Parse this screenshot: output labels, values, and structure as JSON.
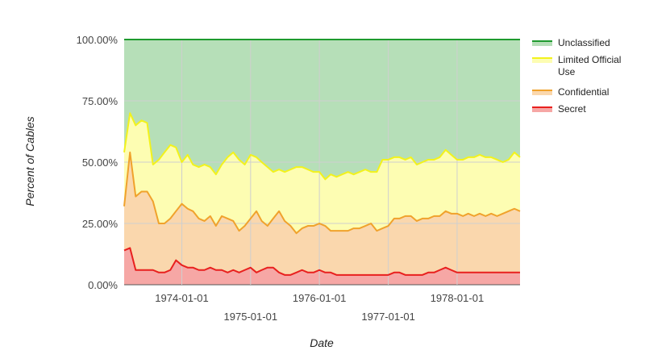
{
  "chart_data": {
    "type": "area",
    "stacking": "percent",
    "xlabel": "Date",
    "ylabel": "Percent of Cables",
    "ylim": [
      0,
      100
    ],
    "xlim": [
      "1973-03-01",
      "1978-12-01"
    ],
    "y_ticks": [
      "0.00%",
      "25.00%",
      "50.00%",
      "75.00%",
      "100.00%"
    ],
    "x_ticks": [
      {
        "date": "1974-01-01",
        "label": "1974-01-01",
        "row": 1
      },
      {
        "date": "1975-01-01",
        "label": "1975-01-01",
        "row": 2
      },
      {
        "date": "1976-01-01",
        "label": "1976-01-01",
        "row": 1
      },
      {
        "date": "1977-01-01",
        "label": "1977-01-01",
        "row": 2
      },
      {
        "date": "1978-01-01",
        "label": "1978-01-01",
        "row": 1
      }
    ],
    "grid": true,
    "legend_position": "right",
    "dates": [
      "1973-03-01",
      "1973-04-01",
      "1973-05-01",
      "1973-06-01",
      "1973-07-01",
      "1973-08-01",
      "1973-09-01",
      "1973-10-01",
      "1973-11-01",
      "1973-12-01",
      "1974-01-01",
      "1974-02-01",
      "1974-03-01",
      "1974-04-01",
      "1974-05-01",
      "1974-06-01",
      "1974-07-01",
      "1974-08-01",
      "1974-09-01",
      "1974-10-01",
      "1974-11-01",
      "1974-12-01",
      "1975-01-01",
      "1975-02-01",
      "1975-03-01",
      "1975-04-01",
      "1975-05-01",
      "1975-06-01",
      "1975-07-01",
      "1975-08-01",
      "1975-09-01",
      "1975-10-01",
      "1975-11-01",
      "1975-12-01",
      "1976-01-01",
      "1976-02-01",
      "1976-03-01",
      "1976-04-01",
      "1976-05-01",
      "1976-06-01",
      "1976-07-01",
      "1976-08-01",
      "1976-09-01",
      "1976-10-01",
      "1976-11-01",
      "1976-12-01",
      "1977-01-01",
      "1977-02-01",
      "1977-03-01",
      "1977-04-01",
      "1977-05-01",
      "1977-06-01",
      "1977-07-01",
      "1977-08-01",
      "1977-09-01",
      "1977-10-01",
      "1977-11-01",
      "1977-12-01",
      "1978-01-01",
      "1978-02-01",
      "1978-03-01",
      "1978-04-01",
      "1978-05-01",
      "1978-06-01",
      "1978-07-01",
      "1978-08-01",
      "1978-09-01",
      "1978-10-01",
      "1978-11-01",
      "1978-12-01"
    ],
    "series": [
      {
        "name": "Unclassified",
        "color": "#1e9a2e",
        "fill": "#b6dfb8",
        "values": [
          100,
          100,
          100,
          100,
          100,
          100,
          100,
          100,
          100,
          100,
          100,
          100,
          100,
          100,
          100,
          100,
          100,
          100,
          100,
          100,
          100,
          100,
          100,
          100,
          100,
          100,
          100,
          100,
          100,
          100,
          100,
          100,
          100,
          100,
          100,
          100,
          100,
          100,
          100,
          100,
          100,
          100,
          100,
          100,
          100,
          100,
          100,
          100,
          100,
          100,
          100,
          100,
          100,
          100,
          100,
          100,
          100,
          100,
          100,
          100,
          100,
          100,
          100,
          100,
          100,
          100,
          100,
          100,
          100,
          100
        ]
      },
      {
        "name": "Limited Official Use",
        "color": "#f2f21c",
        "fill": "#fdfdb2",
        "values": [
          54,
          70,
          65,
          67,
          66,
          49,
          51,
          54,
          57,
          56,
          50,
          53,
          49,
          48,
          49,
          48,
          45,
          49,
          52,
          54,
          51,
          49,
          53,
          52,
          50,
          48,
          46,
          47,
          46,
          47,
          48,
          48,
          47,
          46,
          46,
          43,
          45,
          44,
          45,
          46,
          45,
          46,
          47,
          46,
          46,
          51,
          51,
          52,
          52,
          51,
          52,
          49,
          50,
          51,
          51,
          52,
          55,
          53,
          51,
          51,
          52,
          52,
          53,
          52,
          52,
          51,
          50,
          51,
          54,
          52
        ]
      },
      {
        "name": "Confidential",
        "color": "#f0a22c",
        "fill": "#fad7ad",
        "values": [
          32,
          54,
          36,
          38,
          38,
          34,
          25,
          25,
          27,
          30,
          33,
          31,
          30,
          27,
          26,
          28,
          24,
          28,
          27,
          26,
          22,
          24,
          27,
          30,
          26,
          24,
          27,
          30,
          26,
          24,
          21,
          23,
          24,
          24,
          25,
          24,
          22,
          22,
          22,
          22,
          23,
          23,
          24,
          25,
          22,
          23,
          24,
          27,
          27,
          28,
          28,
          26,
          27,
          27,
          28,
          28,
          30,
          29,
          29,
          28,
          29,
          28,
          29,
          28,
          29,
          28,
          29,
          30,
          31,
          30
        ]
      },
      {
        "name": "Secret",
        "color": "#e8201e",
        "fill": "#f6a7a5",
        "values": [
          14,
          15,
          6,
          6,
          6,
          6,
          5,
          5,
          6,
          10,
          8,
          7,
          7,
          6,
          6,
          7,
          6,
          6,
          5,
          6,
          5,
          6,
          7,
          5,
          6,
          7,
          7,
          5,
          4,
          4,
          5,
          6,
          5,
          5,
          6,
          5,
          5,
          4,
          4,
          4,
          4,
          4,
          4,
          4,
          4,
          4,
          4,
          5,
          5,
          4,
          4,
          4,
          4,
          5,
          5,
          6,
          7,
          6,
          5,
          5,
          5,
          5,
          5,
          5,
          5,
          5,
          5,
          5,
          5,
          5
        ]
      }
    ]
  }
}
